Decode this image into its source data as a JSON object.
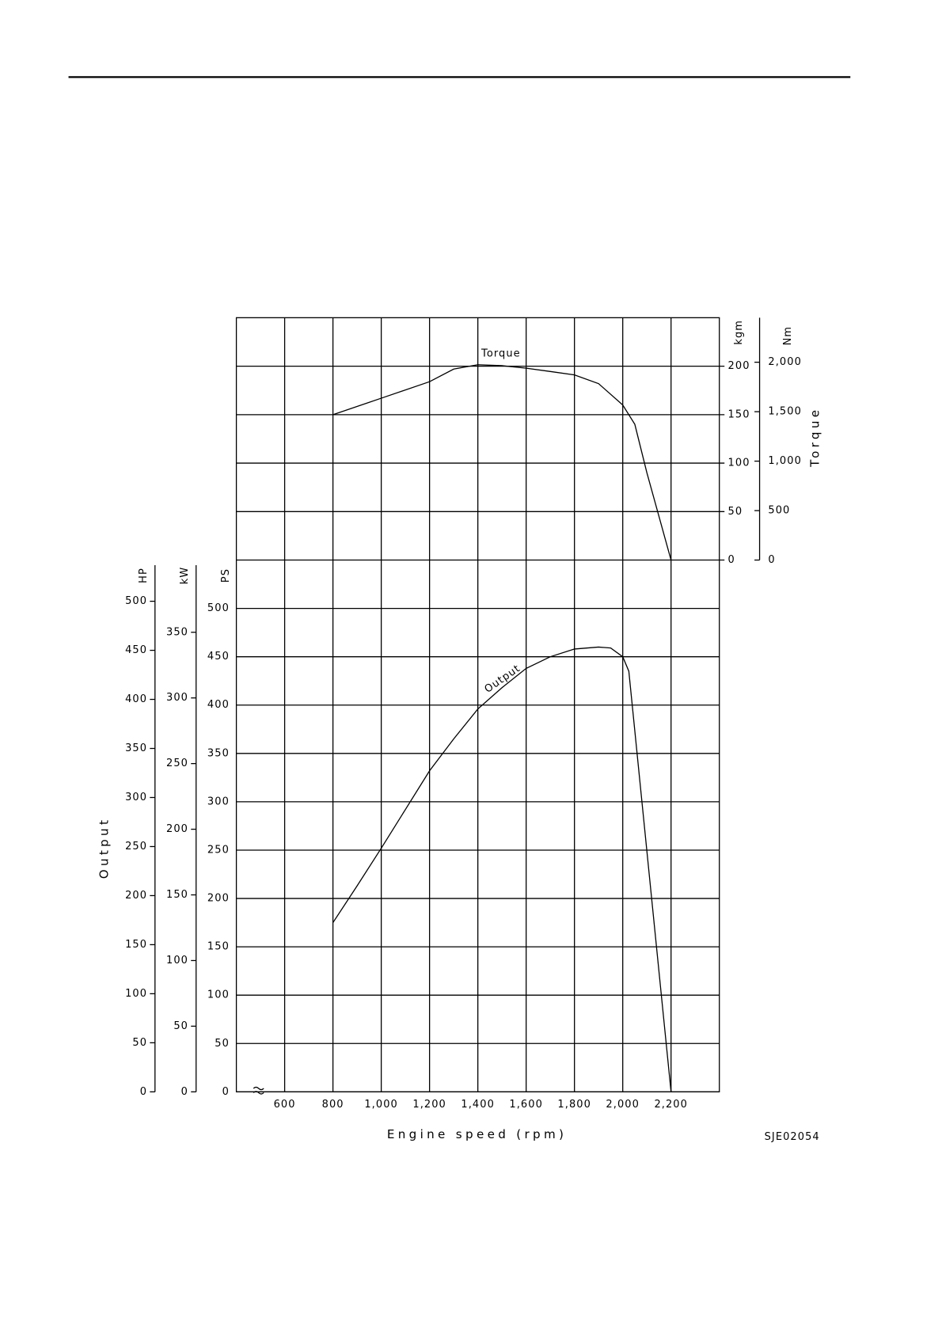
{
  "code": "SJE02054",
  "chart_data": [
    {
      "type": "line",
      "ylabel": "Torque",
      "yunit": "kgm",
      "y2unit": "Nm",
      "xlim": [
        400,
        2400
      ],
      "x": [
        800,
        1000,
        1200,
        1300,
        1400,
        1500,
        1600,
        1700,
        1800,
        1900,
        2000,
        2050,
        2100,
        2200
      ],
      "series": [
        {
          "name": "Torque",
          "color": "#000000",
          "values": [
            150,
            167,
            184,
            197,
            201.5,
            200.5,
            198,
            194.5,
            191,
            182,
            160,
            140,
            90,
            0
          ]
        }
      ],
      "ylim": [
        0,
        250
      ],
      "yticks": [
        0,
        50,
        100,
        150,
        200
      ],
      "y2lim": [
        0,
        2450
      ],
      "y2ticks": [
        0,
        500,
        {
          "value": 1000,
          "label": "1,000"
        },
        {
          "value": 1500,
          "label": "1,500"
        },
        {
          "value": 2000,
          "label": "2,000"
        }
      ],
      "grid": true
    },
    {
      "type": "line",
      "xlabel": "Engine speed (rpm)",
      "ylabel": "Output",
      "yunit": "PS",
      "y2unit": "HP",
      "y3unit": "kW",
      "xlim": [
        400,
        2400
      ],
      "xticks": [
        600,
        800,
        {
          "value": 1000,
          "label": "1,000"
        },
        {
          "value": 1200,
          "label": "1,200"
        },
        {
          "value": 1400,
          "label": "1,400"
        },
        {
          "value": 1600,
          "label": "1,600"
        },
        {
          "value": 1800,
          "label": "1,800"
        },
        {
          "value": 2000,
          "label": "2,000"
        },
        {
          "value": 2200,
          "label": "2,200"
        }
      ],
      "x": [
        800,
        900,
        1000,
        1100,
        1200,
        1300,
        1400,
        1500,
        1600,
        1700,
        1800,
        1900,
        1950,
        2000,
        2025,
        2200
      ],
      "series": [
        {
          "name": "Output",
          "color": "#000000",
          "values": [
            175,
            213,
            252,
            292,
            332,
            365,
            396,
            418,
            438,
            450,
            458,
            460,
            459,
            450,
            435,
            0
          ]
        }
      ],
      "ylim": [
        0,
        550
      ],
      "yticks": [
        0,
        50,
        100,
        150,
        200,
        250,
        300,
        350,
        400,
        450,
        500
      ],
      "y2lim": [
        0,
        542
      ],
      "y2ticks": [
        0,
        50,
        100,
        150,
        200,
        250,
        300,
        350,
        400,
        450,
        500
      ],
      "y3lim": [
        0,
        405
      ],
      "y3ticks": [
        0,
        50,
        100,
        150,
        200,
        250,
        300,
        350
      ],
      "grid": true
    }
  ]
}
